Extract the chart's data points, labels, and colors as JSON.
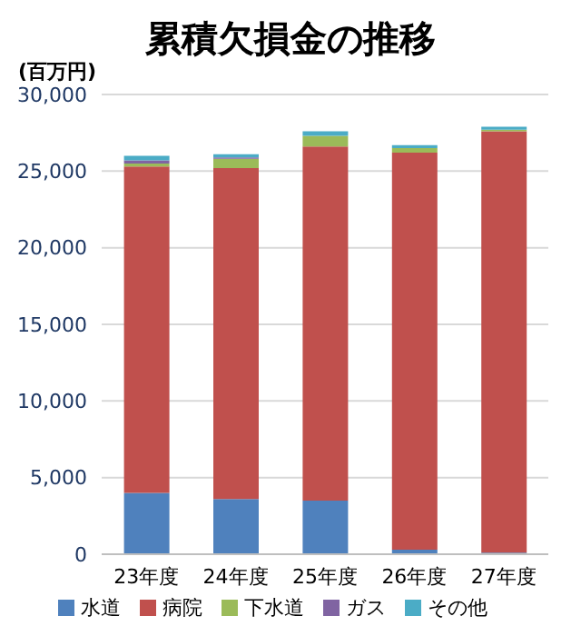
{
  "chart_data": {
    "type": "bar",
    "title": "累積欠損金の推移",
    "ylabel": "(百万円)",
    "categories": [
      "23年度",
      "24年度",
      "25年度",
      "26年度",
      "27年度"
    ],
    "stacked": true,
    "series": [
      {
        "name": "水道",
        "color": "#4f81bd",
        "values": [
          4000,
          3600,
          3500,
          300,
          100
        ]
      },
      {
        "name": "病院",
        "color": "#c0504d",
        "values": [
          21300,
          21600,
          23100,
          25900,
          27500
        ]
      },
      {
        "name": "下水道",
        "color": "#9bbb59",
        "values": [
          200,
          600,
          700,
          300,
          100
        ]
      },
      {
        "name": "ガス",
        "color": "#8064a2",
        "values": [
          200,
          100,
          0,
          0,
          0
        ]
      },
      {
        "name": "その他",
        "color": "#4bacc6",
        "values": [
          300,
          200,
          300,
          200,
          200
        ]
      }
    ],
    "ylim": [
      0,
      30000
    ],
    "yticks": [
      0,
      {
        "value": 5000,
        "label": "5,000"
      },
      {
        "value": 10000,
        "label": "10,000"
      },
      {
        "value": 15000,
        "label": "15,000"
      },
      {
        "value": 20000,
        "label": "20,000"
      },
      {
        "value": 25000,
        "label": "25,000"
      },
      {
        "value": 30000,
        "label": "30,000"
      }
    ],
    "grid": "y",
    "legend": "bottom"
  }
}
